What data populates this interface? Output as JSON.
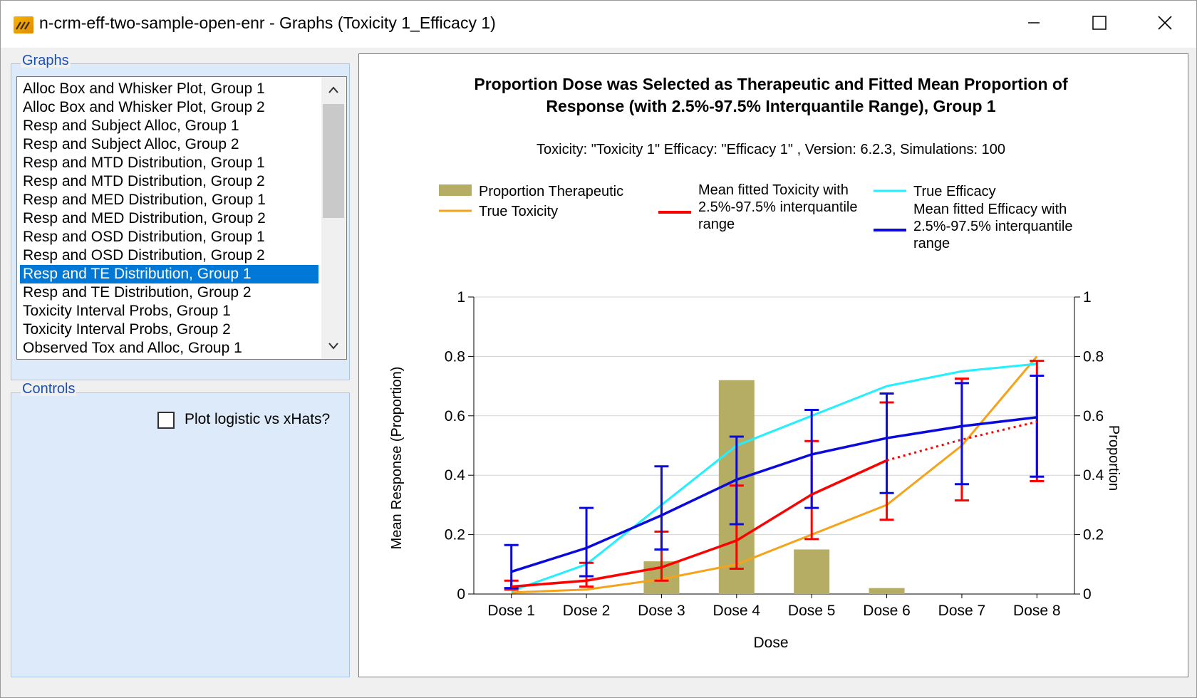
{
  "window": {
    "title": "n-crm-eff-two-sample-open-enr - Graphs (Toxicity 1_Efficacy 1)",
    "controls": {
      "minimize": "minimize",
      "maximize": "maximize",
      "close": "close"
    }
  },
  "graphs_panel": {
    "legend": "Graphs",
    "selected_index": 10,
    "items": [
      "Alloc Box and Whisker Plot, Group 1",
      "Alloc Box and Whisker Plot, Group 2",
      "Resp and Subject Alloc, Group 1",
      "Resp and Subject Alloc, Group 2",
      "Resp and MTD Distribution, Group 1",
      "Resp and MTD Distribution, Group 2",
      "Resp and MED Distribution, Group 1",
      "Resp and MED Distribution, Group 2",
      "Resp and OSD Distribution, Group 1",
      "Resp and OSD Distribution, Group 2",
      "Resp and TE Distribution, Group 1",
      "Resp and TE Distribution, Group 2",
      "Toxicity Interval Probs, Group 1",
      "Toxicity Interval Probs, Group 2",
      "Observed Tox and Alloc, Group 1"
    ]
  },
  "controls_panel": {
    "legend": "Controls",
    "checkbox_label": "Plot logistic vs xHats?",
    "checked": false
  },
  "chart_data": {
    "type": "bar+line",
    "title_line1": "Proportion Dose was Selected as Therapeutic and Fitted Mean Proportion of",
    "title_line2": "Response (with 2.5%-97.5% Interquantile Range), Group 1",
    "subtitle": "Toxicity: \"Toxicity 1\" Efficacy: \"Efficacy 1\" , Version: 6.2.3, Simulations: 100",
    "xlabel": "Dose",
    "ylabel_left": "Mean Response (Proportion)",
    "ylabel_right": "Proportion",
    "ylim": [
      0,
      1
    ],
    "yticks": [
      "0",
      "0.2",
      "0.4",
      "0.6",
      "0.8",
      "1"
    ],
    "categories": [
      "Dose 1",
      "Dose 2",
      "Dose 3",
      "Dose 4",
      "Dose 5",
      "Dose 6",
      "Dose 7",
      "Dose 8"
    ],
    "legend": {
      "proportion_therapeutic": "Proportion Therapeutic",
      "true_toxicity": "True Toxicity",
      "mean_tox_1": "Mean fitted Toxicity with",
      "mean_tox_2": "2.5%-97.5% interquantile",
      "mean_tox_3": "range",
      "true_efficacy": "True Efficacy",
      "mean_eff_1": "Mean fitted Efficacy with",
      "mean_eff_2": "2.5%-97.5% interquantile",
      "mean_eff_3": "range"
    },
    "colors": {
      "bar": "#b5ad63",
      "true_toxicity": "#f5a31a",
      "mean_toxicity": "#ff0000",
      "true_efficacy": "#22f0ff",
      "mean_efficacy": "#0a0adc",
      "grid": "#d3d3d3"
    },
    "series": [
      {
        "name": "Proportion Therapeutic",
        "kind": "bar",
        "values": [
          0,
          0,
          0.11,
          0.72,
          0.15,
          0.02,
          0,
          0
        ]
      },
      {
        "name": "True Toxicity",
        "kind": "line",
        "values": [
          0.005,
          0.015,
          0.05,
          0.1,
          0.2,
          0.3,
          0.5,
          0.8
        ]
      },
      {
        "name": "True Efficacy",
        "kind": "line",
        "values": [
          0.01,
          0.1,
          0.3,
          0.5,
          0.6,
          0.7,
          0.75,
          0.775
        ]
      },
      {
        "name": "Mean fitted Toxicity",
        "kind": "line-errorbar",
        "values": [
          0.025,
          0.045,
          0.09,
          0.18,
          0.335,
          0.45,
          0.52,
          0.58
        ],
        "lower": [
          0.015,
          0.025,
          0.045,
          0.085,
          0.185,
          0.25,
          0.315,
          0.38
        ],
        "upper": [
          0.045,
          0.105,
          0.21,
          0.365,
          0.515,
          0.645,
          0.725,
          0.785
        ],
        "dotted_from_index": 5
      },
      {
        "name": "Mean fitted Efficacy",
        "kind": "line-errorbar",
        "values": [
          0.075,
          0.155,
          0.265,
          0.385,
          0.47,
          0.525,
          0.565,
          0.595
        ],
        "lower": [
          0.02,
          0.06,
          0.15,
          0.235,
          0.29,
          0.34,
          0.37,
          0.395
        ],
        "upper": [
          0.165,
          0.29,
          0.43,
          0.53,
          0.62,
          0.675,
          0.71,
          0.735
        ]
      }
    ]
  }
}
